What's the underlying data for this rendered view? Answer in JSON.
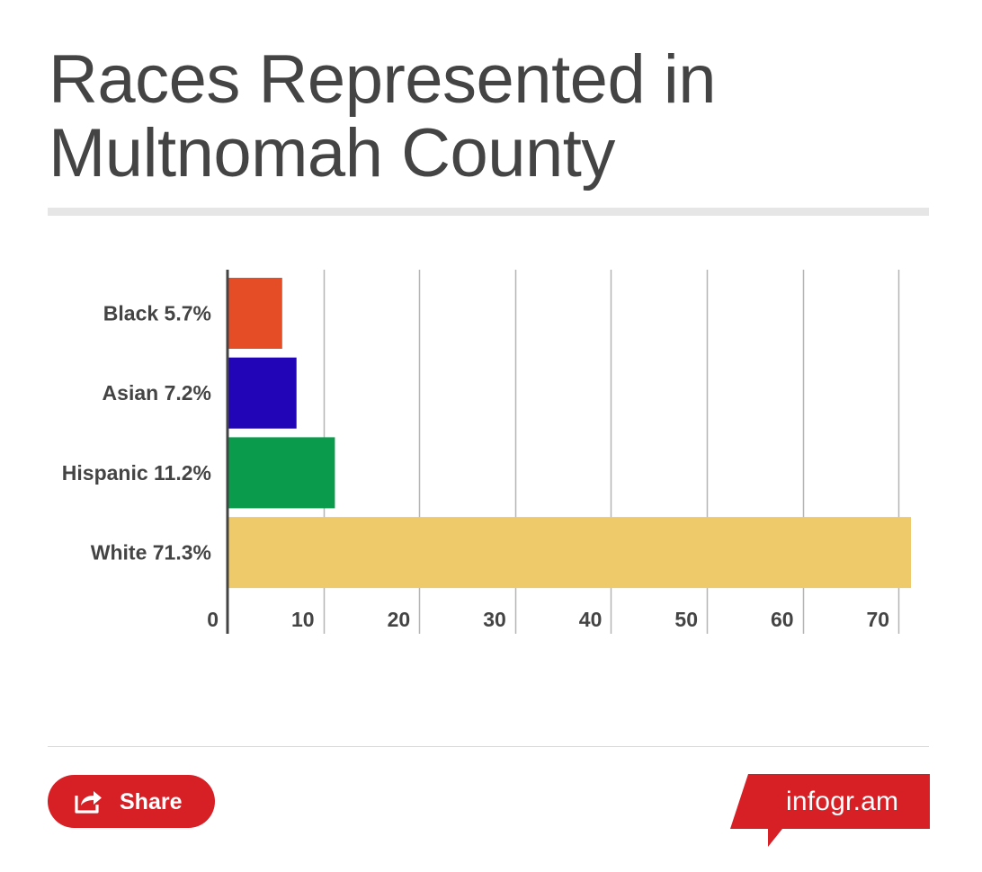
{
  "header": {
    "title": "Races Represented in Multnomah County"
  },
  "chart_data": {
    "type": "bar",
    "orientation": "horizontal",
    "categories": [
      "Black 5.7%",
      "Asian 7.2%",
      "Hispanic 11.2%",
      "White 71.3%"
    ],
    "values": [
      5.7,
      7.2,
      11.2,
      71.3
    ],
    "colors": [
      "#e44d26",
      "#2205b6",
      "#0a9b4d",
      "#efca6b"
    ],
    "xlim": [
      0,
      71.3
    ],
    "xticks": [
      0,
      10,
      20,
      30,
      40,
      50,
      60,
      70
    ],
    "grid": true,
    "title": "Races Represented in Multnomah County",
    "xlabel": "",
    "ylabel": ""
  },
  "footer": {
    "share_label": "Share",
    "brand_label": "infogr.am",
    "share_icon": "share-icon",
    "accent_color": "#d71f26"
  }
}
